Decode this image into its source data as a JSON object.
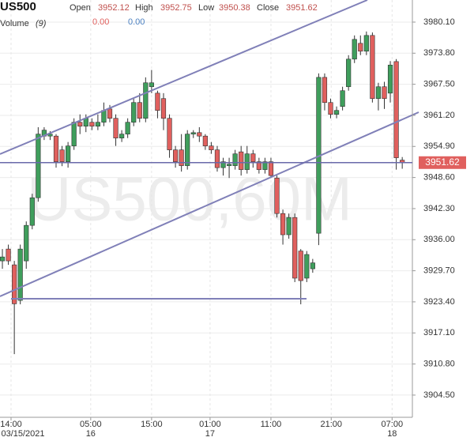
{
  "header": {
    "symbol": "US500",
    "open_label": "Open",
    "high_label": "High",
    "low_label": "Low",
    "close_label": "Close",
    "volume_label": "Volume",
    "volume_period": "(9)",
    "volume_values": [
      "0.00",
      "0.00"
    ],
    "watermark": "US500,60M"
  },
  "chart_data": {
    "type": "candlestick",
    "open": [
      3931.7,
      3934.1,
      3930.9,
      3923.7,
      3931.7,
      3938.9,
      3944.5,
      3957.0,
      3957.0,
      3957.0,
      3954.2,
      3951.8,
      3955.0,
      3959.8,
      3959.0,
      3959.8,
      3959.0,
      3959.8,
      3962.5,
      3960.6,
      3956.6,
      3957.4,
      3959.8,
      3963.8,
      3960.6,
      3967.0,
      3965.7,
      3964.6,
      3960.6,
      3954.2,
      3954.2,
      3951.0,
      3957.4,
      3957.7,
      3957.0,
      3955.0,
      3954.2,
      3950.6,
      3951.0,
      3951.0,
      3953.8,
      3950.2,
      3953.4,
      3951.8,
      3950.2,
      3951.8,
      3948.5,
      3941.3,
      3937.0,
      3940.5,
      3933.7,
      3928.2,
      3930.1,
      3937.3,
      3968.9,
      3963.8,
      3961.4,
      3963.0,
      3967.0,
      3972.6,
      3975.8,
      3974.2,
      3977.4,
      3964.6,
      3967.0,
      3965.7,
      3972.1,
      3952.12
    ],
    "high": [
      3934.1,
      3935.0,
      3931.7,
      3935.0,
      3939.7,
      3945.3,
      3958.8,
      3958.8,
      3958.0,
      3957.4,
      3955.0,
      3955.8,
      3960.6,
      3961.4,
      3961.4,
      3960.6,
      3961.4,
      3963.8,
      3963.3,
      3961.4,
      3958.2,
      3960.6,
      3964.6,
      3965.7,
      3968.9,
      3970.4,
      3966.2,
      3965.7,
      3961.4,
      3955.0,
      3957.4,
      3958.2,
      3958.2,
      3958.8,
      3957.4,
      3955.8,
      3955.0,
      3952.6,
      3952.6,
      3954.2,
      3955.0,
      3955.0,
      3954.2,
      3952.6,
      3952.6,
      3952.6,
      3949.0,
      3942.1,
      3941.3,
      3941.3,
      3934.1,
      3933.7,
      3932.1,
      3969.7,
      3969.7,
      3964.6,
      3963.0,
      3967.0,
      3973.4,
      3977.4,
      3977.4,
      3978.2,
      3978.0,
      3967.8,
      3968.0,
      3972.2,
      3972.6,
      3952.75
    ],
    "low": [
      3930.1,
      3930.9,
      3912.8,
      3922.9,
      3930.1,
      3938.1,
      3943.7,
      3956.2,
      3956.2,
      3950.6,
      3950.9,
      3950.6,
      3954.2,
      3957.4,
      3957.8,
      3958.2,
      3958.2,
      3959.0,
      3959.8,
      3955.0,
      3955.8,
      3956.6,
      3959.0,
      3959.8,
      3959.8,
      3965.7,
      3960.6,
      3958.2,
      3952.6,
      3950.6,
      3949.8,
      3950.2,
      3956.6,
      3955.8,
      3954.2,
      3953.4,
      3949.8,
      3949.0,
      3948.5,
      3950.2,
      3949.0,
      3949.4,
      3950.6,
      3949.4,
      3949.4,
      3948.5,
      3940.5,
      3935.0,
      3936.2,
      3927.4,
      3922.9,
      3927.4,
      3929.3,
      3934.9,
      3962.2,
      3960.6,
      3960.6,
      3962.2,
      3966.2,
      3971.8,
      3973.4,
      3973.4,
      3963.8,
      3962.2,
      3962.5,
      3963.8,
      3950.2,
      3950.38
    ],
    "close": [
      3932.5,
      3931.7,
      3923.0,
      3934.1,
      3938.9,
      3944.5,
      3957.4,
      3958.2,
      3957.4,
      3951.8,
      3951.8,
      3955.0,
      3959.8,
      3959.0,
      3960.6,
      3959.0,
      3959.8,
      3962.2,
      3960.6,
      3956.6,
      3957.4,
      3959.8,
      3963.8,
      3960.6,
      3967.8,
      3967.8,
      3962.2,
      3960.6,
      3954.2,
      3951.8,
      3951.0,
      3957.4,
      3957.7,
      3957.0,
      3955.0,
      3954.2,
      3950.6,
      3951.8,
      3951.3,
      3953.4,
      3950.2,
      3953.4,
      3951.8,
      3950.2,
      3951.8,
      3949.0,
      3941.3,
      3937.0,
      3940.5,
      3928.2,
      3927.7,
      3933.0,
      3931.3,
      3968.9,
      3963.8,
      3961.4,
      3962.2,
      3966.2,
      3972.6,
      3976.6,
      3974.2,
      3977.4,
      3964.6,
      3967.0,
      3964.6,
      3971.4,
      3952.6,
      3951.62
    ],
    "up_color": "#3f9e5c",
    "down_color": "#e0605e",
    "xlim": [
      -0.4,
      68.7
    ],
    "xticks": [
      {
        "value": 1.45,
        "label": "14:00"
      },
      {
        "value": 14.8,
        "label": "05:00"
      },
      {
        "value": 25.0,
        "label": "15:00"
      },
      {
        "value": 34.8,
        "label": "01:00"
      },
      {
        "value": 45.0,
        "label": "11:00"
      },
      {
        "value": 55.1,
        "label": "21:00"
      },
      {
        "value": 65.3,
        "label": "07:00"
      }
    ],
    "xdates": [
      {
        "value": 1.45,
        "label": "03/15/2021"
      },
      {
        "value": 14.8,
        "label": "16"
      },
      {
        "value": 34.8,
        "label": "17"
      },
      {
        "value": 65.3,
        "label": "18"
      }
    ],
    "ylim": [
      3900.0,
      3984.58
    ],
    "yticks": [
      {
        "value": 3980.1,
        "label": "3980.10"
      },
      {
        "value": 3973.8,
        "label": "3973.80"
      },
      {
        "value": 3967.5,
        "label": "3967.50"
      },
      {
        "value": 3961.2,
        "label": "3961.20"
      },
      {
        "value": 3954.9,
        "label": "3954.90"
      },
      {
        "value": 3948.6,
        "label": "3948.60"
      },
      {
        "value": 3942.3,
        "label": "3942.30"
      },
      {
        "value": 3936.0,
        "label": "3936.00"
      },
      {
        "value": 3929.7,
        "label": "3929.70"
      },
      {
        "value": 3923.4,
        "label": "3923.40"
      },
      {
        "value": 3917.1,
        "label": "3917.10"
      },
      {
        "value": 3910.8,
        "label": "3910.80"
      },
      {
        "value": 3904.5,
        "label": "3904.50"
      }
    ],
    "grid": true
  }
}
